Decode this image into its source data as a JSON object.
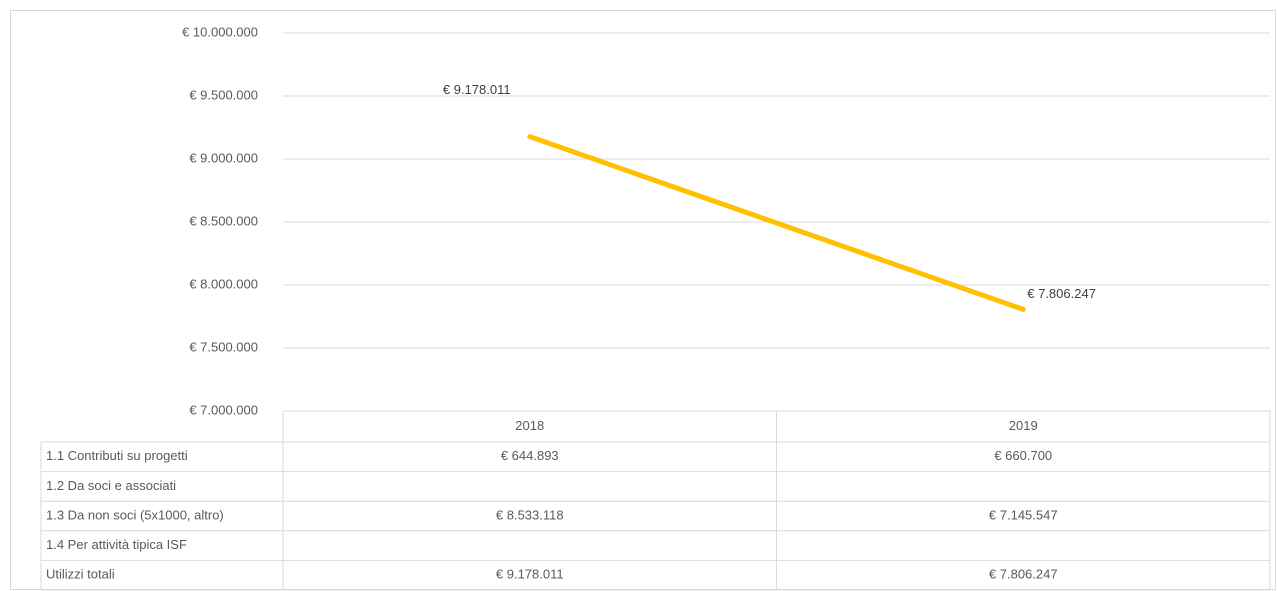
{
  "chart_data": {
    "type": "line",
    "categories": [
      "2018",
      "2019"
    ],
    "series": [
      {
        "name": "Utilizzi totali",
        "color": "#ffc000",
        "values": [
          9178011,
          7806247
        ],
        "value_labels": [
          "€ 9.178.011",
          "€ 7.806.247"
        ]
      }
    ],
    "ylim": [
      7000000,
      10000000
    ],
    "yticks": [
      {
        "value": 7000000,
        "label": "€ 7.000.000"
      },
      {
        "value": 7500000,
        "label": "€ 7.500.000"
      },
      {
        "value": 8000000,
        "label": "€ 8.000.000"
      },
      {
        "value": 8500000,
        "label": "€ 8.500.000"
      },
      {
        "value": 9000000,
        "label": "€ 9.000.000"
      },
      {
        "value": 9500000,
        "label": "€ 9.500.000"
      },
      {
        "value": 10000000,
        "label": "€ 10.000.000"
      }
    ],
    "grid": true,
    "data_table": {
      "rows": [
        [
          "1.1 Contributi su progetti",
          "€ 644.893",
          "€ 660.700"
        ],
        [
          "1.2 Da soci e associati",
          null,
          null
        ],
        [
          "1.3 Da non soci (5x1000, altro)",
          "€ 8.533.118",
          "€ 7.145.547"
        ],
        [
          "1.4 Per attività tipica ISF",
          null,
          null
        ]
      ]
    }
  }
}
